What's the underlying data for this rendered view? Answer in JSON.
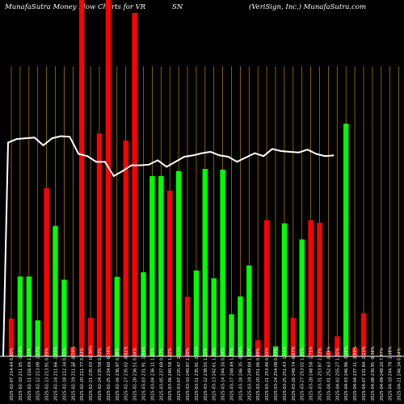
{
  "header": {
    "left": "MunafaSutra  Money Flow  Charts for VR",
    "middle": "SN",
    "right": "(VeriSign,  Inc.) MunafaSutra.com"
  },
  "marker_label": "5",
  "colors": {
    "background": "#000000",
    "up": "#00ff00",
    "down": "#ff0000",
    "gridline": "#b8860b",
    "line": "#ffffff",
    "text": "#ffffff"
  },
  "chart_data": {
    "type": "bar",
    "title": "",
    "xlabel": "",
    "ylabel": "",
    "ylim": [
      0,
      100
    ],
    "grid": true,
    "categories": [
      "2025-02-07 214.44 0.40%",
      "2025-02-10 211.05 -1.58%",
      "2025-02-11 216.69 2.67%",
      "2025-02-12 213.08 -1.67%",
      "2025-02-13 213.91 0.39%",
      "2025-02-14 211.66 -1.05%",
      "2025-02-18 212.34 0.32%",
      "2025-02-19 211.27 -0.50%",
      "2025-02-20 211.77 0.24%",
      "2025-02-21 235.03 10.98%",
      "2025-02-24 235.58 0.23%",
      "2025-02-25 234.68 -0.38%",
      "2025-02-26 236.97 0.98%",
      "2025-02-27 235.02 -0.82%",
      "2025-02-28 236.51 0.64%",
      "2025-03-03 231.91 -1.94%",
      "2025-03-04 236.11 1.81%",
      "2025-03-05 237.69 0.67%",
      "2025-03-06 240.58 1.22%",
      "2025-03-07 235.47 -2.12%",
      "2025-03-10 240.87 2.29%",
      "2025-03-11 235.91 -2.06%",
      "2025-03-12 238.55 1.12%",
      "2025-03-13 242.61 1.70%",
      "2025-03-14 244.16 0.64%",
      "2025-03-17 248.49 1.77%",
      "2025-03-18 246.35 -0.86%",
      "2025-03-19 249.84 1.42%",
      "2025-03-20 251.06 0.49%",
      "2025-03-21 253.40 0.93%",
      "2025-03-24 254.08 0.27%",
      "2025-03-25 251.43 -1.04%",
      "2025-03-26 249.74 -0.67%",
      "2025-03-27 253.02 1.31%",
      "2025-03-28 248.58 -1.75%",
      "2025-03-31 253.87 2.13%",
      "2025-04-01 252.63 -0.49%",
      "2025-04-02 255.27 1.05%",
      "2025-04-03 246.96 -3.26%",
      "2025-04-04 237.11 -3.99%",
      "2025-04-07 231.84 -2.22%",
      "2025-04-08 230.95 -0.38%",
      "2025-04-09 248.20 7.47%",
      "2025-04-10 244.78 -1.38%",
      "2025-04-11 246.34 0.64%"
    ],
    "directions": [
      "down",
      "up",
      "up",
      "up",
      "down",
      "up",
      "up",
      "down",
      "down",
      "down",
      "down",
      "down",
      "up",
      "down",
      "down",
      "up",
      "up",
      "up",
      "down",
      "up",
      "down",
      "up",
      "up",
      "up",
      "up",
      "up",
      "up",
      "up",
      "down",
      "down",
      "up",
      "up",
      "down",
      "up",
      "down",
      "down",
      "down",
      "down",
      "up",
      "down",
      "down",
      "down",
      "up",
      "down",
      "down"
    ],
    "values": [
      10.6,
      22.4,
      22.4,
      10.1,
      47.2,
      36.6,
      21.5,
      2.6,
      100,
      10.8,
      62.5,
      100,
      22.3,
      60.5,
      96.4,
      23.6,
      50.6,
      50.6,
      46.5,
      52.0,
      16.7,
      24.1,
      52.6,
      21.9,
      52.4,
      11.8,
      16.8,
      25.5,
      4.5,
      38.2,
      2.8,
      37.3,
      10.8,
      32.8,
      38.2,
      37.5,
      1.4,
      5.6,
      65.3,
      2.4,
      12.1,
      0,
      0,
      0,
      0
    ],
    "line_values": [
      60,
      61,
      61.2,
      61.4,
      59.2,
      61.2,
      61.8,
      61.6,
      56.8,
      56.2,
      54.6,
      54.6,
      50.6,
      52,
      53.6,
      53.6,
      53.8,
      55,
      53.2,
      54.6,
      56,
      56.4,
      57,
      57.4,
      56.4,
      56,
      54.6,
      55.8,
      57,
      56.2,
      58.2,
      57.6,
      57.4,
      57.2,
      58,
      56.8,
      56.2,
      56.4,
      0,
      0,
      0,
      0,
      0,
      0,
      0
    ]
  }
}
